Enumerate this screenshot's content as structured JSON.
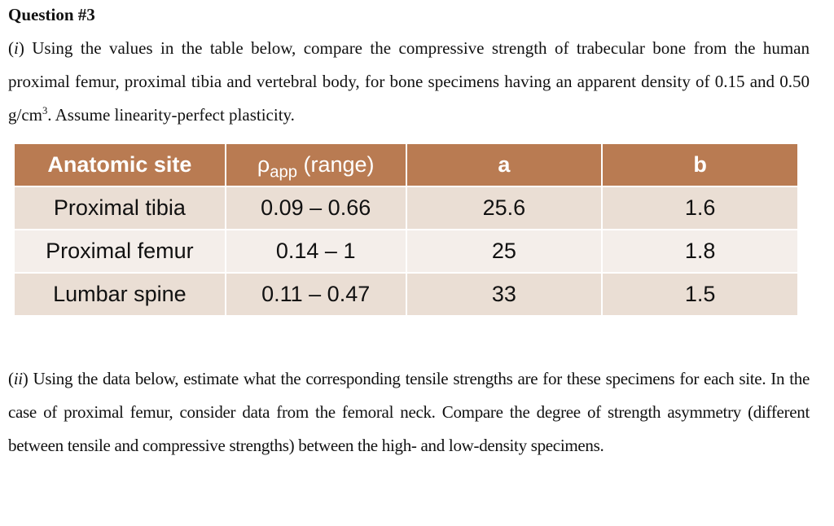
{
  "title": "Question #3",
  "part_i": [
    {
      "text": "("
    },
    {
      "text": "i",
      "style": "italic"
    },
    {
      "text": ") Using the values in the table below, compare the compressive strength of trabecular bone from the human proximal femur, proximal tibia and vertebral body, for bone specimens having an apparent density of 0.15 and 0.50 g/cm"
    },
    {
      "text": "3",
      "style": "sup"
    },
    {
      "text": ". Assume linearity-perfect plasticity."
    }
  ],
  "table": {
    "header": [
      [
        {
          "text": "Anatomic site"
        }
      ],
      [
        {
          "text": "ρ"
        },
        {
          "text": "app",
          "style": "sub"
        },
        {
          "text": " (range)"
        }
      ],
      [
        {
          "text": "a"
        }
      ],
      [
        {
          "text": "b"
        }
      ]
    ],
    "rows": [
      [
        "Proximal tibia",
        "0.09 – 0.66",
        "25.6",
        "1.6"
      ],
      [
        "Proximal femur",
        "0.14 – 1",
        "25",
        "1.8"
      ],
      [
        "Lumbar spine",
        "0.11 – 0.47",
        "33",
        "1.5"
      ]
    ]
  },
  "part_ii": [
    {
      "text": "("
    },
    {
      "text": "ii",
      "style": "italic"
    },
    {
      "text": ") Using the data below, estimate what the corresponding tensile strengths are for these specimens for each site. In the case of proximal femur, consider data from the femoral neck. Compare the degree of strength asymmetry (different between tensile and compressive strengths) between the high- and low-density specimens."
    }
  ]
}
